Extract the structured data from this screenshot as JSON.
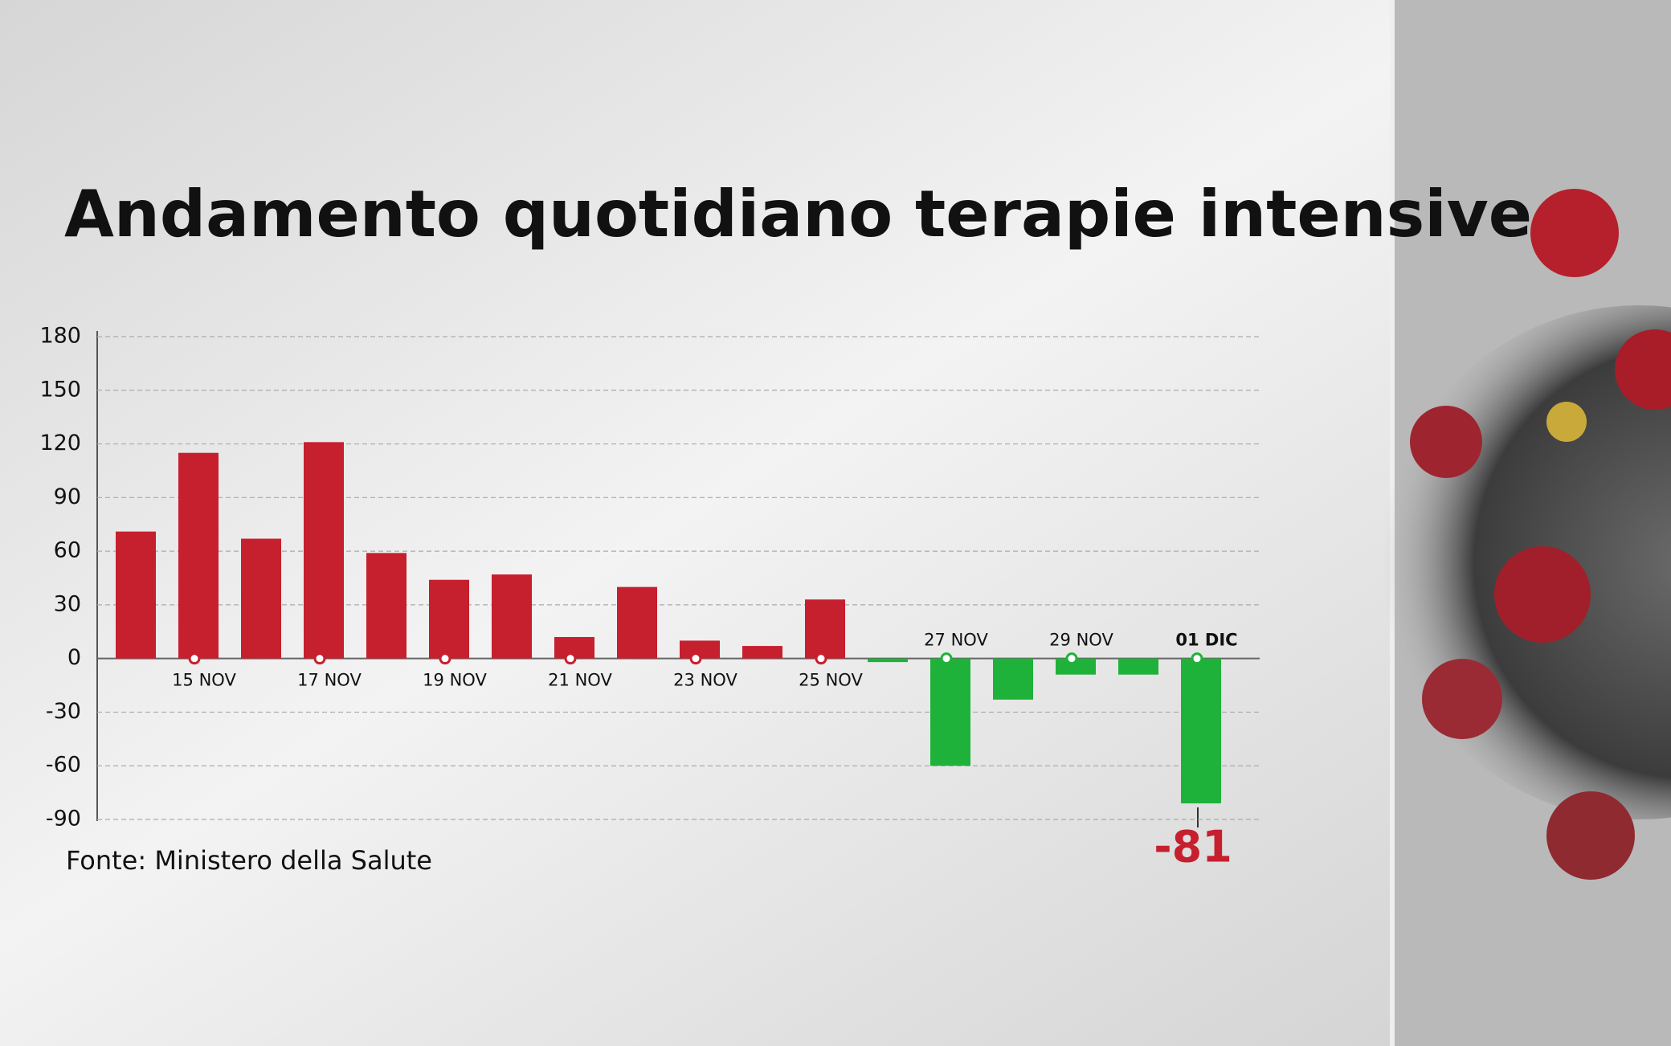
{
  "chart_data": {
    "type": "bar",
    "title": "Andamento quotidiano terapie intensive",
    "source": "Fonte: Ministero della Salute",
    "categories": [
      null,
      "15 NOV",
      null,
      "17 NOV",
      null,
      "19 NOV",
      null,
      "21 NOV",
      null,
      "23 NOV",
      null,
      "25 NOV",
      null,
      "27 NOV",
      null,
      "29 NOV",
      null,
      "01 DIC"
    ],
    "values": [
      71,
      115,
      67,
      121,
      59,
      44,
      47,
      12,
      40,
      10,
      7,
      33,
      -2,
      -60,
      -23,
      -9,
      -9,
      -81
    ],
    "positive_color": "#c61f2e",
    "negative_color": "#1fb23a",
    "ylim": [
      -90,
      180
    ],
    "yticks": [
      180,
      150,
      120,
      90,
      60,
      30,
      0,
      -30,
      -60,
      -90
    ],
    "grid": true
  }
}
